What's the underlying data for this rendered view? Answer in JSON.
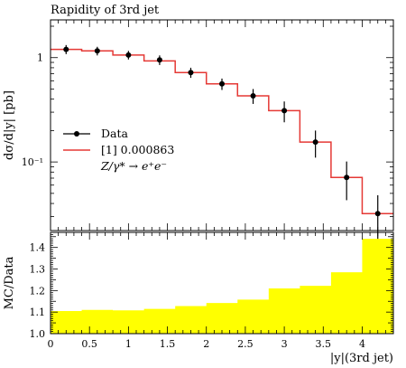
{
  "chart_data": [
    {
      "type": "line",
      "title": "Rapidity of 3rd jet",
      "xlabel": "|y|(3rd jet)",
      "ylabel": "dσ/d|y| [pb]",
      "yscale": "log",
      "xlim": [
        0,
        4.4
      ],
      "ylim": [
        0.022,
        2.3
      ],
      "grid": false,
      "legend_position": "middle-left",
      "bin_edges": [
        0,
        0.4,
        0.8,
        1.2,
        1.6,
        2.0,
        2.4,
        2.8,
        3.2,
        3.6,
        4.0,
        4.4
      ],
      "ytick_values": [
        1,
        0.1
      ],
      "ytick_labels": [
        "1",
        "10⁻¹"
      ],
      "series": [
        {
          "name": "Data",
          "style": "points-with-errorbars",
          "color": "#000000",
          "x": [
            0.2,
            0.6,
            1.0,
            1.4,
            1.8,
            2.2,
            2.6,
            3.0,
            3.4,
            3.8,
            4.2
          ],
          "y": [
            1.2,
            1.16,
            1.06,
            0.95,
            0.72,
            0.56,
            0.43,
            0.31,
            0.155,
            0.071,
            0.032
          ],
          "err_low": [
            0.12,
            0.11,
            0.1,
            0.1,
            0.08,
            0.07,
            0.07,
            0.07,
            0.045,
            0.028,
            0.015
          ],
          "err_high": [
            0.12,
            0.11,
            0.1,
            0.1,
            0.08,
            0.07,
            0.07,
            0.07,
            0.045,
            0.03,
            0.016
          ]
        },
        {
          "name": "[1] 0.000863",
          "style": "step",
          "color": "#e53935",
          "values": [
            1.2,
            1.16,
            1.06,
            0.93,
            0.72,
            0.56,
            0.43,
            0.31,
            0.155,
            0.071,
            0.032
          ]
        }
      ],
      "legend": {
        "entries": [
          "Data",
          "[1] 0.000863"
        ],
        "process_label": "Z/γ* → e⁺e⁻"
      }
    },
    {
      "type": "area",
      "ylabel": "MC/Data",
      "xlabel": "|y|(3rd jet)",
      "xlim": [
        0,
        4.4
      ],
      "ylim": [
        1.0,
        1.47
      ],
      "fill_color": "#ffff00",
      "bin_edges": [
        0,
        0.4,
        0.8,
        1.2,
        1.6,
        2.0,
        2.4,
        2.8,
        3.2,
        3.6,
        4.0,
        4.4
      ],
      "values": [
        1.105,
        1.11,
        1.108,
        1.115,
        1.128,
        1.142,
        1.158,
        1.21,
        1.222,
        1.285,
        1.44
      ],
      "xtick_values": [
        0,
        0.5,
        1,
        1.5,
        2,
        2.5,
        3,
        3.5,
        4
      ],
      "xtick_labels": [
        "0",
        "0.5",
        "1",
        "1.5",
        "2",
        "2.5",
        "3",
        "3.5",
        "4"
      ],
      "ytick_values": [
        1.0,
        1.1,
        1.2,
        1.3,
        1.4
      ],
      "ytick_labels": [
        "1.0",
        "1.1",
        "1.2",
        "1.3",
        "1.4"
      ]
    }
  ]
}
